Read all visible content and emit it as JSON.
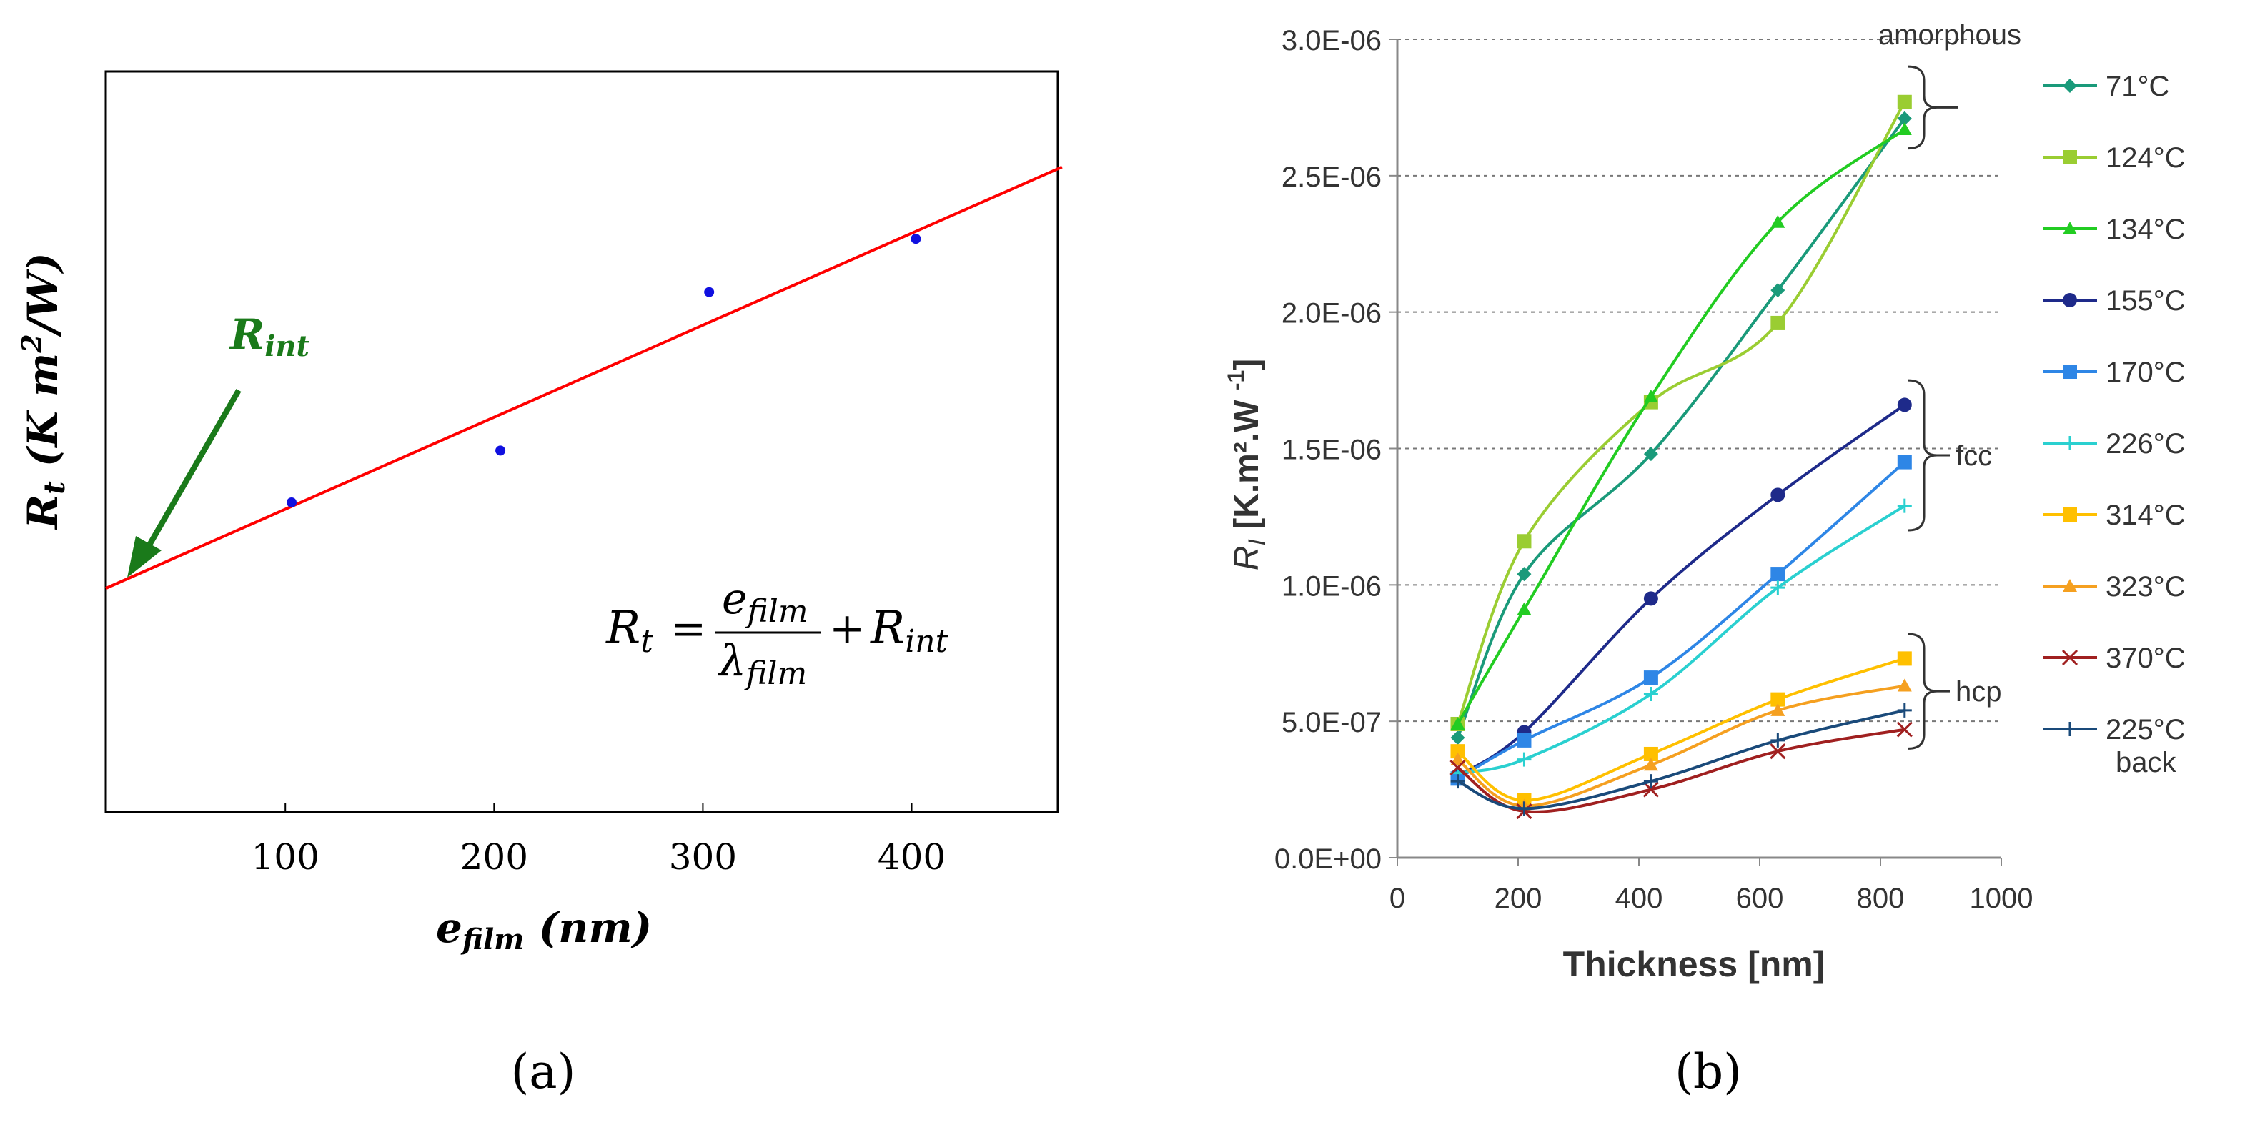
{
  "chart_data": [
    {
      "panel_label": "(a)",
      "type": "scatter",
      "xlabel_main": "e",
      "xlabel_sub": "film",
      "xlabel_unit": " (nm)",
      "ylabel_main": "R",
      "ylabel_sub": "t",
      "ylabel_unit": " (K m",
      "ylabel_sup": "2",
      "ylabel_unit_end": "/W)",
      "x_ticks": [
        "100",
        "200",
        "300",
        "400"
      ],
      "xlim": [
        14,
        470
      ],
      "ylim": [
        0,
        1
      ],
      "points": [
        {
          "x": 103,
          "y": 0.418
        },
        {
          "x": 203,
          "y": 0.488
        },
        {
          "x": 303,
          "y": 0.702
        },
        {
          "x": 402,
          "y": 0.774
        }
      ],
      "fit_line": {
        "x": [
          14,
          472
        ],
        "y": [
          0.302,
          0.871
        ],
        "color": "#ff0000"
      },
      "point_color": "#1010e0",
      "annotation": {
        "main": "R",
        "sub": "int",
        "color": "#1a7a1a"
      },
      "equation": {
        "lhs": "R",
        "lhs_sub": "t",
        "eq": "=",
        "num": "e",
        "num_sub": "film",
        "den": "λ",
        "den_sub": "film",
        "plus": "+",
        "rhs": "R",
        "rhs_sub": "int"
      }
    },
    {
      "panel_label": "(b)",
      "type": "line",
      "xlabel": "Thickness [nm]",
      "ylabel_main": "R",
      "ylabel_sub": "I",
      "ylabel_unit": " [K.m².W ",
      "ylabel_sup": "-1",
      "ylabel_end": "]",
      "xlim": [
        0,
        1000
      ],
      "ylim": [
        0,
        3e-06
      ],
      "x_ticks": [
        "0",
        "200",
        "400",
        "600",
        "800",
        "1000"
      ],
      "y_ticks": [
        "0.0E+00",
        "5.0E-07",
        "1.0E-06",
        "1.5E-06",
        "2.0E-06",
        "2.5E-06",
        "3.0E-06"
      ],
      "phase_labels": [
        {
          "text": "amorphous",
          "y_low": 2.6e-06,
          "y_high": 2.9e-06
        },
        {
          "text": "fcc",
          "y_low": 1.2e-06,
          "y_high": 1.75e-06
        },
        {
          "text": "hcp",
          "y_low": 4e-07,
          "y_high": 8.2e-07
        }
      ],
      "series": [
        {
          "name": "71°C",
          "color": "#1a9a7a",
          "marker": "diamond",
          "x": [
            100,
            210,
            420,
            630,
            840
          ],
          "y": [
            4.4e-07,
            1.04e-06,
            1.48e-06,
            2.08e-06,
            2.71e-06
          ]
        },
        {
          "name": "124°C",
          "color": "#9acd32",
          "marker": "square",
          "x": [
            100,
            210,
            420,
            630,
            840
          ],
          "y": [
            4.9e-07,
            1.16e-06,
            1.67e-06,
            1.96e-06,
            2.77e-06
          ]
        },
        {
          "name": "134°C",
          "color": "#22cc22",
          "marker": "triangle",
          "x": [
            100,
            210,
            420,
            630,
            840
          ],
          "y": [
            4.9e-07,
            9.1e-07,
            1.69e-06,
            2.33e-06,
            2.67e-06
          ]
        },
        {
          "name": "155°C",
          "color": "#1e2a8a",
          "marker": "circle",
          "x": [
            100,
            210,
            420,
            630,
            840
          ],
          "y": [
            3e-07,
            4.6e-07,
            9.5e-07,
            1.33e-06,
            1.66e-06
          ]
        },
        {
          "name": "170°C",
          "color": "#2e86e6",
          "marker": "square",
          "x": [
            100,
            210,
            420,
            630,
            840
          ],
          "y": [
            2.9e-07,
            4.3e-07,
            6.6e-07,
            1.04e-06,
            1.45e-06
          ]
        },
        {
          "name": "226°C",
          "color": "#2ad0d0",
          "marker": "plus",
          "x": [
            100,
            210,
            420,
            630,
            840
          ],
          "y": [
            3.1e-07,
            3.6e-07,
            6e-07,
            9.9e-07,
            1.29e-06
          ]
        },
        {
          "name": "314°C",
          "color": "#ffc000",
          "marker": "square",
          "x": [
            100,
            210,
            420,
            630,
            840
          ],
          "y": [
            3.9e-07,
            2.1e-07,
            3.8e-07,
            5.8e-07,
            7.3e-07
          ]
        },
        {
          "name": "323°C",
          "color": "#f5a020",
          "marker": "triangle",
          "x": [
            100,
            210,
            420,
            630,
            840
          ],
          "y": [
            3.6e-07,
            1.9e-07,
            3.4e-07,
            5.4e-07,
            6.3e-07
          ]
        },
        {
          "name": "370°C",
          "color": "#a02020",
          "marker": "x",
          "x": [
            100,
            210,
            420,
            630,
            840
          ],
          "y": [
            3.3e-07,
            1.7e-07,
            2.5e-07,
            3.9e-07,
            4.7e-07
          ]
        },
        {
          "name": "225°C",
          "name_line2": "back",
          "color": "#1a4a7a",
          "marker": "plus",
          "x": [
            100,
            210,
            420,
            630,
            840
          ],
          "y": [
            2.8e-07,
            1.8e-07,
            2.8e-07,
            4.3e-07,
            5.4e-07
          ]
        }
      ]
    }
  ]
}
